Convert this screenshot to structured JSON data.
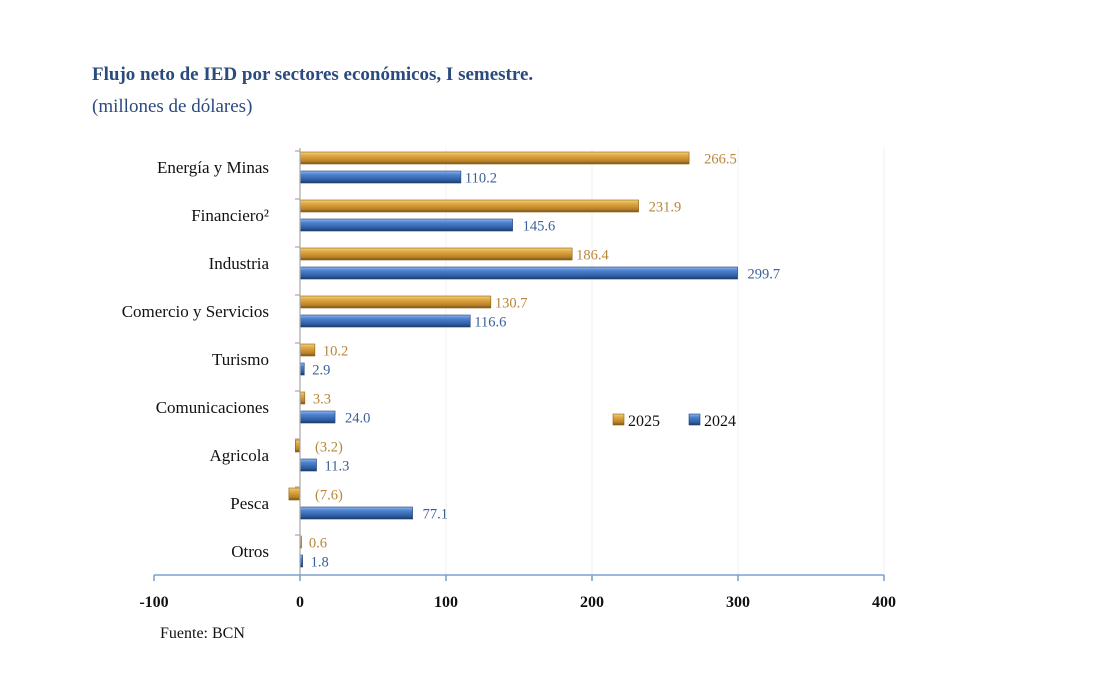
{
  "title": "Flujo neto de IED por sectores económicos, I semestre.",
  "subtitle": "(millones de dólares)",
  "source": "Fuente: BCN",
  "chart_data": {
    "type": "bar",
    "orientation": "horizontal",
    "title": "Flujo neto de IED por sectores económicos, I semestre.",
    "subtitle": "(millones de dólares)",
    "xlabel": "",
    "ylabel": "",
    "xlim": [
      -100,
      400
    ],
    "xticks": [
      -100,
      0,
      100,
      200,
      300,
      400
    ],
    "xtick_labels": [
      "-100",
      "0",
      "100",
      "200",
      "300",
      "400"
    ],
    "grid": false,
    "legend_position": "center-right",
    "categories": [
      "Energía y Minas",
      "Financiero²",
      "Industria",
      "Comercio y Servicios",
      "Turismo",
      "Comunicaciones",
      "Agricola",
      "Pesca",
      "Otros"
    ],
    "series": [
      {
        "name": "2025",
        "color": "#c8922a",
        "label_color": "#b9853a",
        "values": [
          266.5,
          231.9,
          186.4,
          130.7,
          10.2,
          3.3,
          -3.2,
          -7.6,
          0.6
        ],
        "labels": [
          "266.5",
          "231.9",
          "186.4",
          "130.7",
          "10.2",
          "3.3",
          "(3.2)",
          "(7.6)",
          "0.6"
        ]
      },
      {
        "name": "2024",
        "color": "#3a6db4",
        "label_color": "#3b5f99",
        "values": [
          110.2,
          145.6,
          299.7,
          116.6,
          2.9,
          24.0,
          11.3,
          77.1,
          1.8
        ],
        "labels": [
          "110.2",
          "145.6",
          "299.7",
          "116.6",
          "2.9",
          "24.0",
          "11.3",
          "77.1",
          "1.8"
        ]
      }
    ]
  }
}
